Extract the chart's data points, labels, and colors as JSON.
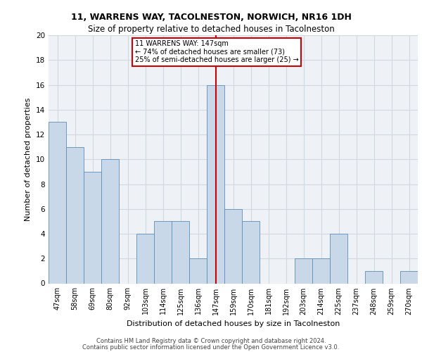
{
  "title1": "11, WARRENS WAY, TACOLNESTON, NORWICH, NR16 1DH",
  "title2": "Size of property relative to detached houses in Tacolneston",
  "xlabel": "Distribution of detached houses by size in Tacolneston",
  "ylabel": "Number of detached properties",
  "categories": [
    "47sqm",
    "58sqm",
    "69sqm",
    "80sqm",
    "92sqm",
    "103sqm",
    "114sqm",
    "125sqm",
    "136sqm",
    "147sqm",
    "159sqm",
    "170sqm",
    "181sqm",
    "192sqm",
    "203sqm",
    "214sqm",
    "225sqm",
    "237sqm",
    "248sqm",
    "259sqm",
    "270sqm"
  ],
  "values": [
    13,
    11,
    9,
    10,
    0,
    4,
    5,
    5,
    2,
    16,
    6,
    5,
    0,
    0,
    2,
    2,
    4,
    0,
    1,
    0,
    1
  ],
  "bar_color": "#c8d8e8",
  "bar_edge_color": "#5b8db8",
  "highlight_index": 9,
  "highlight_line_color": "#cc0000",
  "annotation_line1": "11 WARRENS WAY: 147sqm",
  "annotation_line2": "← 74% of detached houses are smaller (73)",
  "annotation_line3": "25% of semi-detached houses are larger (25) →",
  "annotation_box_color": "#cc0000",
  "ylim": [
    0,
    20
  ],
  "yticks": [
    0,
    2,
    4,
    6,
    8,
    10,
    12,
    14,
    16,
    18,
    20
  ],
  "grid_color": "#d0d8e0",
  "bg_color": "#eef2f7",
  "footer1": "Contains HM Land Registry data © Crown copyright and database right 2024.",
  "footer2": "Contains public sector information licensed under the Open Government Licence v3.0."
}
